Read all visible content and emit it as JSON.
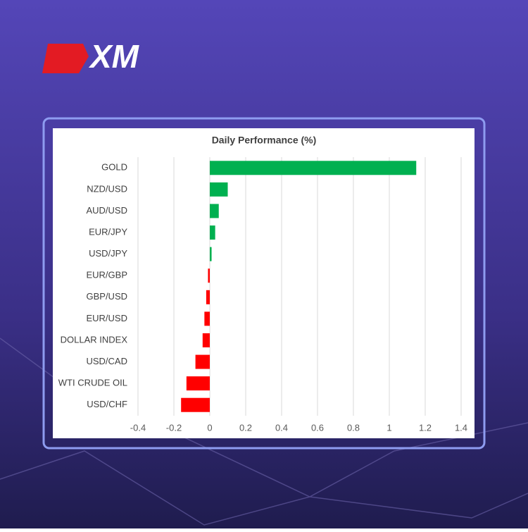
{
  "brand": "XM",
  "chart_data": {
    "type": "bar",
    "orientation": "horizontal",
    "title": "Daily Performance (%)",
    "categories": [
      "GOLD",
      "NZD/USD",
      "AUD/USD",
      "EUR/JPY",
      "USD/JPY",
      "EUR/GBP",
      "GBP/USD",
      "EUR/USD",
      "DOLLAR INDEX",
      "USD/CAD",
      "WTI CRUDE OIL",
      "USD/CHF"
    ],
    "values": [
      1.15,
      0.1,
      0.05,
      0.03,
      0.01,
      -0.01,
      -0.02,
      -0.03,
      -0.04,
      -0.08,
      -0.13,
      -0.16
    ],
    "positive_color": "#00b050",
    "negative_color": "#ff0000",
    "xlim": [
      -0.4,
      1.4
    ],
    "xticks": [
      -0.4,
      -0.2,
      0,
      0.2,
      0.4,
      0.6,
      0.8,
      1,
      1.2,
      1.4
    ],
    "grid": true
  }
}
